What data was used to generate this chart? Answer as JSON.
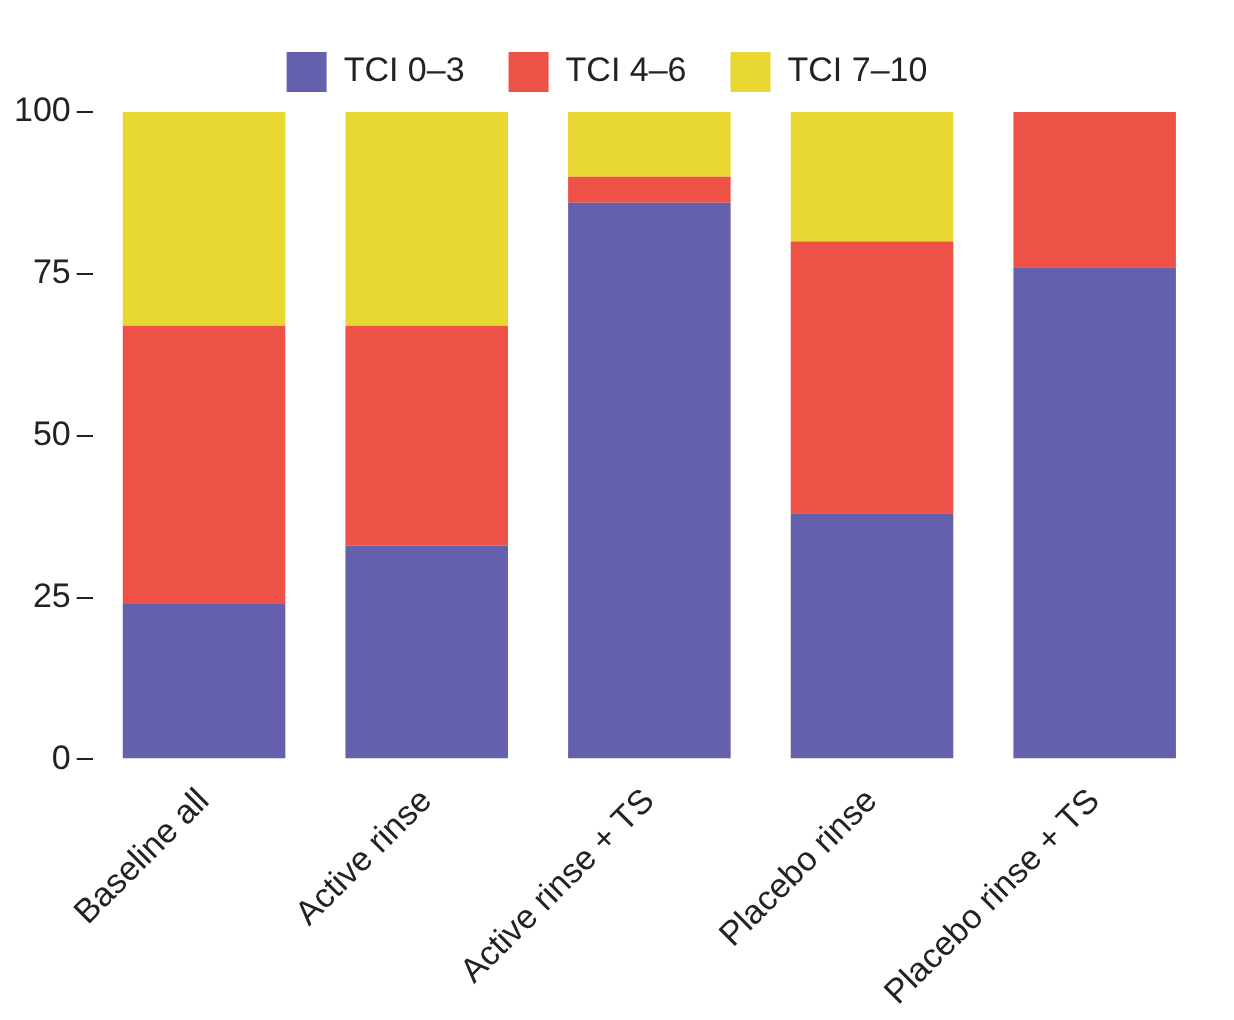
{
  "chart_data": {
    "type": "bar",
    "stacked": true,
    "categories": [
      "Baseline all",
      "Active rinse",
      "Active rinse + TS",
      "Placebo rinse",
      "Placebo rinse + TS"
    ],
    "series": [
      {
        "name": "TCI 0–3",
        "color": "#6460ac",
        "values": [
          24,
          33,
          86,
          38,
          76
        ]
      },
      {
        "name": "TCI 4–6",
        "color": "#ee5246",
        "values": [
          43,
          34,
          4,
          42,
          24
        ]
      },
      {
        "name": "TCI 7–10",
        "color": "#e8d631",
        "values": [
          33,
          33,
          10,
          20,
          0
        ]
      }
    ],
    "ylim": [
      0,
      100
    ],
    "yticks": [
      0,
      25,
      50,
      75,
      100
    ],
    "grid": false,
    "legend": "top"
  }
}
